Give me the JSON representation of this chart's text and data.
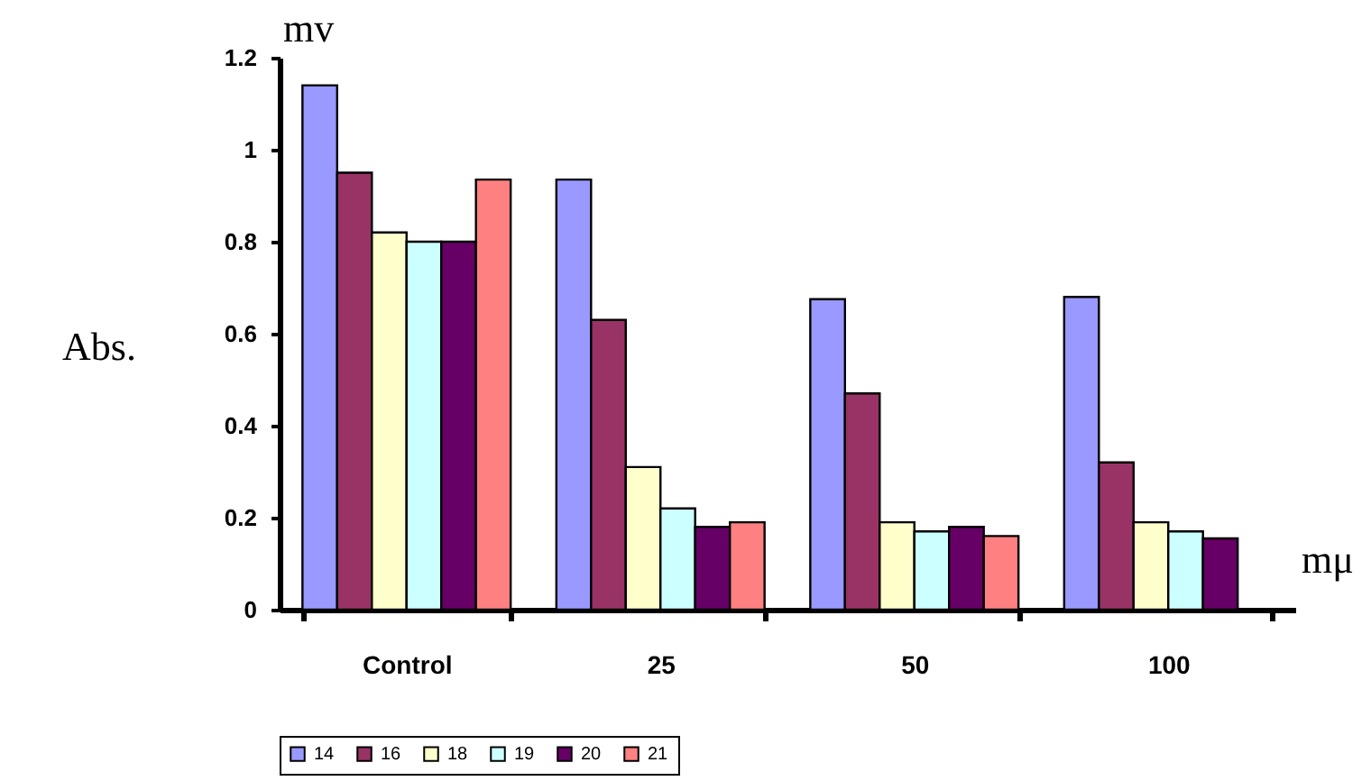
{
  "chart_data": {
    "type": "bar",
    "categories": [
      "Control",
      "25",
      "50",
      "100"
    ],
    "series": [
      {
        "name": "14",
        "color": "#9999ff",
        "values": [
          1.14,
          0.935,
          0.675,
          0.68
        ]
      },
      {
        "name": "16",
        "color": "#993366",
        "values": [
          0.95,
          0.63,
          0.47,
          0.32
        ]
      },
      {
        "name": "18",
        "color": "#ffffcc",
        "values": [
          0.82,
          0.31,
          0.19,
          0.19
        ]
      },
      {
        "name": "19",
        "color": "#ccffff",
        "values": [
          0.8,
          0.22,
          0.17,
          0.17
        ]
      },
      {
        "name": "20",
        "color": "#660066",
        "values": [
          0.8,
          0.18,
          0.18,
          0.155
        ]
      },
      {
        "name": "21",
        "color": "#ff8080",
        "values": [
          0.935,
          0.19,
          0.16,
          null
        ]
      }
    ],
    "ylabel": "Abs.",
    "xlabel": "mμ",
    "annotations": [
      "mv"
    ],
    "ylim": [
      0,
      1.2
    ],
    "yticks": [
      0,
      0.2,
      0.4,
      0.6,
      0.8,
      1,
      1.2
    ],
    "grid": false,
    "legend": "bottom"
  }
}
